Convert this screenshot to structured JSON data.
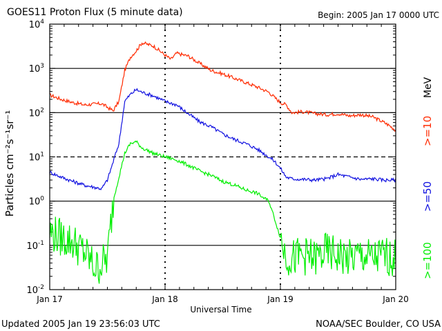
{
  "chart_data": {
    "type": "line",
    "title": "GOES11 Proton Flux (5 minute data)",
    "begin": "Begin: 2005 Jan 17 0000 UTC",
    "xlabel": "Universal Time",
    "ylabel": "Particles cm⁻²s⁻¹sr⁻¹",
    "ylim_log10": [
      -2,
      4
    ],
    "xlim_days": [
      0,
      3
    ],
    "x_ticks": [
      {
        "day": 0,
        "label": "Jan 17"
      },
      {
        "day": 1,
        "label": "Jan 18"
      },
      {
        "day": 2,
        "label": "Jan 19"
      },
      {
        "day": 3,
        "label": "Jan 20"
      }
    ],
    "y_ticks": [
      {
        "exp": 4,
        "base": "10",
        "sup": "4"
      },
      {
        "exp": 3,
        "base": "10",
        "sup": "3"
      },
      {
        "exp": 2,
        "base": "10",
        "sup": "2"
      },
      {
        "exp": 1,
        "base": "10",
        "sup": "1"
      },
      {
        "exp": 0,
        "base": "10",
        "sup": "0"
      },
      {
        "exp": -1,
        "base": "10",
        "sup": "-1"
      },
      {
        "exp": -2,
        "base": "10",
        "sup": "-2"
      }
    ],
    "solid_gridlines_exp": [
      3,
      2,
      0,
      -1
    ],
    "dashed_gridlines_exp": [
      1
    ],
    "legend_unit": "MeV",
    "series": [
      {
        "name": ">=10",
        "color": "#ff2a00",
        "x": [
          0,
          0.1,
          0.2,
          0.3,
          0.45,
          0.55,
          0.6,
          0.65,
          0.7,
          0.75,
          0.8,
          0.9,
          1.0,
          1.05,
          1.1,
          1.2,
          1.3,
          1.4,
          1.5,
          1.6,
          1.7,
          1.8,
          1.9,
          1.95,
          2.0,
          2.05,
          2.1,
          2.2,
          2.3,
          2.4,
          2.5,
          2.6,
          2.7,
          2.8,
          2.9,
          2.95,
          3.0
        ],
        "y": [
          250,
          200,
          170,
          150,
          160,
          110,
          180,
          900,
          1800,
          2500,
          3800,
          3200,
          2000,
          1600,
          2200,
          1900,
          1300,
          900,
          750,
          600,
          480,
          380,
          290,
          220,
          170,
          150,
          100,
          105,
          95,
          90,
          95,
          85,
          90,
          80,
          60,
          50,
          40
        ]
      },
      {
        "name": ">=50",
        "color": "#1010e0",
        "x": [
          0,
          0.1,
          0.2,
          0.3,
          0.45,
          0.5,
          0.6,
          0.65,
          0.7,
          0.75,
          0.8,
          0.9,
          1.0,
          1.1,
          1.2,
          1.3,
          1.4,
          1.5,
          1.6,
          1.7,
          1.8,
          1.9,
          1.95,
          2.0,
          2.05,
          2.1,
          2.2,
          2.3,
          2.4,
          2.5,
          2.6,
          2.7,
          2.8,
          2.9,
          3.0
        ],
        "y": [
          4.5,
          3.5,
          2.8,
          2.3,
          1.9,
          3,
          20,
          180,
          260,
          330,
          290,
          240,
          180,
          150,
          95,
          62,
          48,
          33,
          25,
          20,
          15,
          10,
          8,
          5.5,
          3.5,
          3.2,
          3.1,
          3.0,
          3.2,
          4.0,
          3.5,
          3.1,
          3.2,
          3.0,
          3.0
        ]
      },
      {
        "name": ">=100",
        "color": "#00ee00",
        "x": [
          0,
          0.1,
          0.2,
          0.3,
          0.4,
          0.5,
          0.55,
          0.6,
          0.65,
          0.7,
          0.75,
          0.8,
          0.9,
          1.0,
          1.1,
          1.2,
          1.3,
          1.4,
          1.5,
          1.6,
          1.7,
          1.8,
          1.85,
          1.9,
          1.95,
          2.0,
          2.05,
          2.1,
          2.2,
          2.3,
          2.4,
          2.5,
          2.6,
          2.7,
          2.8,
          2.9,
          3.0
        ],
        "y": [
          0.2,
          0.15,
          0.12,
          0.07,
          0.03,
          0.05,
          1.0,
          3.5,
          12,
          20,
          22,
          16,
          12,
          10,
          8.5,
          6.5,
          4.8,
          3.8,
          2.8,
          2.3,
          1.8,
          1.5,
          1.2,
          1.0,
          0.4,
          0.15,
          0.06,
          0.05,
          0.06,
          0.05,
          0.07,
          0.06,
          0.05,
          0.06,
          0.05,
          0.06,
          0.05
        ]
      }
    ]
  },
  "footer": {
    "updated": "Updated 2005 Jan 19 23:56:03 UTC",
    "credit": "NOAA/SEC Boulder, CO USA"
  }
}
